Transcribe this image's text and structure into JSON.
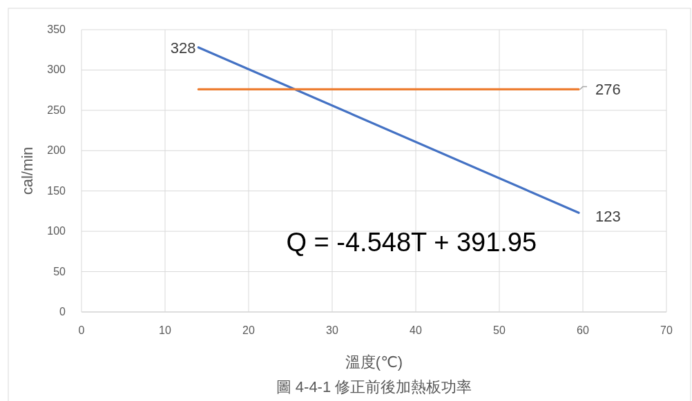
{
  "chart_data": {
    "type": "line",
    "title": "圖 4-4-1 修正前後加熱板功率",
    "xlabel": "溫度(℃)",
    "ylabel": "cal/min",
    "xlim": [
      0,
      70
    ],
    "xticks": [
      0,
      10,
      20,
      30,
      40,
      50,
      60,
      70
    ],
    "ylim": [
      0,
      350
    ],
    "yticks": [
      0,
      50,
      100,
      150,
      200,
      250,
      300,
      350
    ],
    "grid": true,
    "x": [
      14,
      59.5
    ],
    "series": [
      {
        "color": "#4472c4",
        "values": [
          328,
          123
        ],
        "value_labels": [
          "328",
          "123"
        ]
      },
      {
        "color": "#ed7d31",
        "values": [
          276,
          276
        ],
        "value_labels": [
          null,
          "276"
        ]
      }
    ],
    "annotations": [
      "Q = -4.548T + 391.95"
    ]
  }
}
